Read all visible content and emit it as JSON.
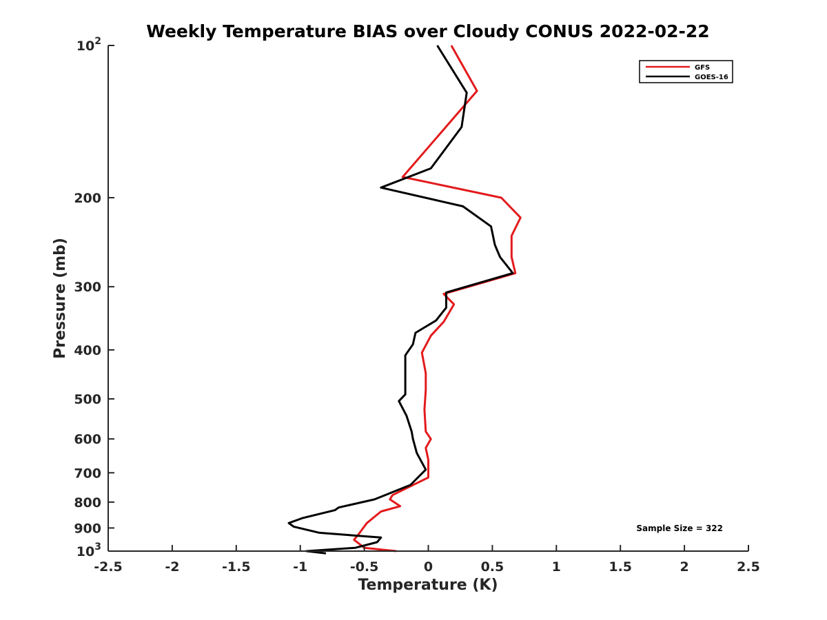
{
  "chart_data": {
    "type": "line",
    "title": "Weekly Temperature BIAS over Cloudy CONUS 2022-02-22",
    "xlabel": "Temperature (K)",
    "ylabel": "Pressure (mb)",
    "xlim": [
      -2.5,
      2.5
    ],
    "ylim": [
      100,
      1000
    ],
    "y_scale": "log",
    "y_reversed": true,
    "grid": false,
    "legend_position": "top-right",
    "x_ticks": [
      "-2.5",
      "-2",
      "-1.5",
      "-1",
      "-0.5",
      "0",
      "0.5",
      "1",
      "1.5",
      "2",
      "2.5"
    ],
    "y_ticks": [
      {
        "value": 100,
        "base": "10",
        "exp": "2"
      },
      {
        "value": 200,
        "label": "200"
      },
      {
        "value": 300,
        "label": "300"
      },
      {
        "value": 400,
        "label": "400"
      },
      {
        "value": 500,
        "label": "500"
      },
      {
        "value": 600,
        "label": "600"
      },
      {
        "value": 700,
        "label": "700"
      },
      {
        "value": 800,
        "label": "800"
      },
      {
        "value": 900,
        "label": "900"
      },
      {
        "value": 1000,
        "base": "10",
        "exp": "3"
      }
    ],
    "annotation": "Sample Size = 322",
    "series": [
      {
        "name": "GFS",
        "color": "#e31a1c",
        "points": [
          [
            0.18,
            100
          ],
          [
            0.38,
            123
          ],
          [
            -0.2,
            182
          ],
          [
            0.57,
            200
          ],
          [
            0.72,
            219
          ],
          [
            0.65,
            238
          ],
          [
            0.65,
            262
          ],
          [
            0.68,
            282
          ],
          [
            0.12,
            310
          ],
          [
            0.2,
            325
          ],
          [
            0.12,
            352
          ],
          [
            0.02,
            375
          ],
          [
            -0.05,
            405
          ],
          [
            -0.02,
            445
          ],
          [
            -0.02,
            480
          ],
          [
            -0.03,
            525
          ],
          [
            -0.02,
            580
          ],
          [
            0.02,
            600
          ],
          [
            -0.02,
            625
          ],
          [
            0.0,
            660
          ],
          [
            0.0,
            715
          ],
          [
            -0.28,
            775
          ],
          [
            -0.3,
            790
          ],
          [
            -0.22,
            815
          ],
          [
            -0.37,
            835
          ],
          [
            -0.48,
            880
          ],
          [
            -0.55,
            930
          ],
          [
            -0.58,
            950
          ],
          [
            -0.5,
            985
          ],
          [
            -0.25,
            1000
          ]
        ]
      },
      {
        "name": "GOES-16",
        "color": "#000000",
        "points": [
          [
            0.07,
            100
          ],
          [
            0.3,
            124
          ],
          [
            0.26,
            145
          ],
          [
            0.02,
            175
          ],
          [
            -0.37,
            191
          ],
          [
            0.27,
            208
          ],
          [
            0.49,
            228
          ],
          [
            0.52,
            248
          ],
          [
            0.56,
            262
          ],
          [
            0.66,
            282
          ],
          [
            0.14,
            308
          ],
          [
            0.14,
            330
          ],
          [
            0.06,
            350
          ],
          [
            -0.1,
            370
          ],
          [
            -0.12,
            390
          ],
          [
            -0.18,
            410
          ],
          [
            -0.18,
            450
          ],
          [
            -0.18,
            490
          ],
          [
            -0.23,
            505
          ],
          [
            -0.17,
            540
          ],
          [
            -0.13,
            580
          ],
          [
            -0.12,
            600
          ],
          [
            -0.09,
            640
          ],
          [
            -0.02,
            690
          ],
          [
            -0.14,
            740
          ],
          [
            -0.42,
            790
          ],
          [
            -0.7,
            820
          ],
          [
            -0.73,
            830
          ],
          [
            -0.98,
            860
          ],
          [
            -1.09,
            880
          ],
          [
            -1.05,
            895
          ],
          [
            -0.85,
            920
          ],
          [
            -0.37,
            940
          ],
          [
            -0.4,
            960
          ],
          [
            -0.57,
            985
          ],
          [
            -0.95,
            1000
          ],
          [
            -0.8,
            1010
          ]
        ]
      }
    ]
  }
}
